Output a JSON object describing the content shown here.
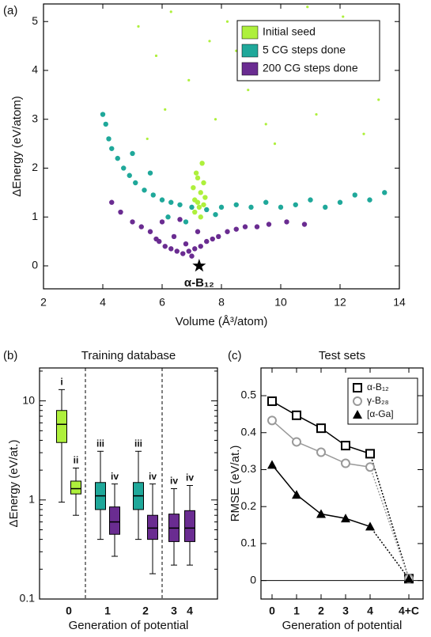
{
  "chart_data": [
    {
      "type": "scatter",
      "panel": "(a)",
      "xlabel": "Volume (Å³/atom)",
      "ylabel": "ΔEnergy (eV/atom)",
      "xlim": [
        2,
        14
      ],
      "ylim": [
        -0.47,
        5.36
      ],
      "xticks": [
        2,
        4,
        6,
        8,
        10,
        12,
        14
      ],
      "yticks": [
        0,
        1,
        2,
        3,
        4,
        5
      ],
      "legend": "upper right",
      "series": [
        {
          "name": "Initial seed",
          "color": "#aef03c",
          "x": [
            7.1,
            7.2,
            7.3,
            7.4,
            7.15,
            7.35,
            7.25,
            7.05,
            7.45,
            7.2,
            7.3,
            7.1,
            7.4,
            5.2,
            5.8,
            6.3,
            6.9,
            7.6,
            8.2,
            8.9,
            9.5,
            10.4,
            11.2,
            12.1,
            12.8,
            13.3,
            6.1,
            8.5,
            10.9,
            9.8,
            11.8,
            7.8,
            5.5
          ],
          "values": [
            1.1,
            1.3,
            1.5,
            1.7,
            1.9,
            2.1,
            1.2,
            1.6,
            1.4,
            1.8,
            1.0,
            1.35,
            1.25,
            4.9,
            4.3,
            5.2,
            3.8,
            4.6,
            5.0,
            3.6,
            2.9,
            4.1,
            3.1,
            5.1,
            2.7,
            3.4,
            3.2,
            4.4,
            5.3,
            2.5,
            4.7,
            3.0,
            2.6
          ]
        },
        {
          "name": "5 CG steps done",
          "color": "#1fa89a",
          "x": [
            4.0,
            4.1,
            4.2,
            4.3,
            4.5,
            4.7,
            4.9,
            5.1,
            5.4,
            5.7,
            6.0,
            6.3,
            6.6,
            7.0,
            7.5,
            8.0,
            8.5,
            9.0,
            9.5,
            10.0,
            10.5,
            11.0,
            11.5,
            12.0,
            12.5,
            13.0,
            13.5,
            6.2,
            6.8,
            7.8,
            5.0,
            5.6
          ],
          "values": [
            3.1,
            2.9,
            2.6,
            2.4,
            2.2,
            2.0,
            1.85,
            1.7,
            1.55,
            1.45,
            1.35,
            1.3,
            1.25,
            1.2,
            1.15,
            1.2,
            1.25,
            1.2,
            1.3,
            1.2,
            1.25,
            1.35,
            1.2,
            1.3,
            1.45,
            1.35,
            1.5,
            1.0,
            0.9,
            1.05,
            2.3,
            1.9
          ]
        },
        {
          "name": "200 CG steps done",
          "color": "#6a2c91",
          "x": [
            4.3,
            4.6,
            5.0,
            5.3,
            5.6,
            5.9,
            6.1,
            6.3,
            6.5,
            6.7,
            6.9,
            7.1,
            7.3,
            7.5,
            7.7,
            7.9,
            8.2,
            8.5,
            8.8,
            9.2,
            9.6,
            10.2,
            10.8,
            6.0,
            6.4,
            6.8,
            7.2,
            6.6,
            7.0,
            5.8
          ],
          "values": [
            1.3,
            1.1,
            0.9,
            0.8,
            0.7,
            0.5,
            0.4,
            0.35,
            0.3,
            0.25,
            0.3,
            0.35,
            0.4,
            0.5,
            0.55,
            0.6,
            0.7,
            0.75,
            0.8,
            0.8,
            0.85,
            0.9,
            0.85,
            0.9,
            0.6,
            0.45,
            0.7,
            0.95,
            0.2,
            0.55
          ]
        }
      ],
      "annotations": [
        {
          "text": "α-B₁₂",
          "x": 7.25,
          "y": 0
        }
      ]
    },
    {
      "type": "box",
      "panel": "(b)",
      "title": "Training database",
      "xlabel": "Generation of potential",
      "ylabel": "ΔEnergy (eV/at.)",
      "log_y": true,
      "ylim": [
        0.1,
        21.5
      ],
      "yticks": [
        0.1,
        1,
        10
      ],
      "groups": [
        {
          "category": "0",
          "boxes": [
            {
              "label": "i",
              "color": "#aef03c",
              "whisker_low": 0.95,
              "q1": 3.8,
              "median": 5.8,
              "q3": 8,
              "whisker_high": 13
            },
            {
              "label": "ii",
              "color": "#aef03c",
              "whisker_low": 0.7,
              "q1": 1.15,
              "median": 1.3,
              "q3": 1.55,
              "whisker_high": 2.1
            }
          ]
        },
        {
          "category": "1",
          "boxes": [
            {
              "label": "iii",
              "color": "#1fa89a",
              "whisker_low": 0.4,
              "q1": 0.8,
              "median": 1.1,
              "q3": 1.5,
              "whisker_high": 3.1
            },
            {
              "label": "iv",
              "color": "#6a2c91",
              "whisker_low": 0.27,
              "q1": 0.45,
              "median": 0.6,
              "q3": 0.85,
              "whisker_high": 1.45
            }
          ]
        },
        {
          "category": "2",
          "boxes": [
            {
              "label": "iii",
              "color": "#1fa89a",
              "whisker_low": 0.4,
              "q1": 0.8,
              "median": 1.1,
              "q3": 1.5,
              "whisker_high": 3.1
            },
            {
              "label": "iv",
              "color": "#6a2c91",
              "whisker_low": 0.18,
              "q1": 0.4,
              "median": 0.52,
              "q3": 0.7,
              "whisker_high": 1.45
            }
          ]
        },
        {
          "category": "3",
          "boxes": [
            {
              "label": "iv",
              "color": "#6a2c91",
              "whisker_low": 0.22,
              "q1": 0.38,
              "median": 0.52,
              "q3": 0.72,
              "whisker_high": 1.3
            }
          ]
        },
        {
          "category": "4",
          "boxes": [
            {
              "label": "iv",
              "color": "#6a2c91",
              "whisker_low": 0.22,
              "q1": 0.38,
              "median": 0.52,
              "q3": 0.78,
              "whisker_high": 1.4
            }
          ]
        }
      ]
    },
    {
      "type": "line",
      "panel": "(c)",
      "title": "Test sets",
      "xlabel": "Generation of potential",
      "ylabel": "RMSE (eV/at.)",
      "categories": [
        "0",
        "1",
        "2",
        "3",
        "4",
        "4+C"
      ],
      "ylim": [
        -0.05,
        0.575
      ],
      "yticks": [
        0,
        0.1,
        0.2,
        0.3,
        0.4,
        0.5
      ],
      "legend": "upper right",
      "series": [
        {
          "name": "α-B₁₂",
          "color": "#000000",
          "marker": "square",
          "values": [
            0.485,
            0.447,
            0.412,
            0.365,
            0.343,
            0.005
          ]
        },
        {
          "name": "γ-B₂₈",
          "color": "#999999",
          "marker": "circle",
          "values": [
            0.433,
            0.375,
            0.347,
            0.317,
            0.307,
            0.005
          ]
        },
        {
          "name": "[α-Ga]",
          "color": "#000000",
          "marker": "triangle",
          "values": [
            0.313,
            0.232,
            0.18,
            0.168,
            0.146,
            0.005
          ]
        }
      ]
    }
  ]
}
